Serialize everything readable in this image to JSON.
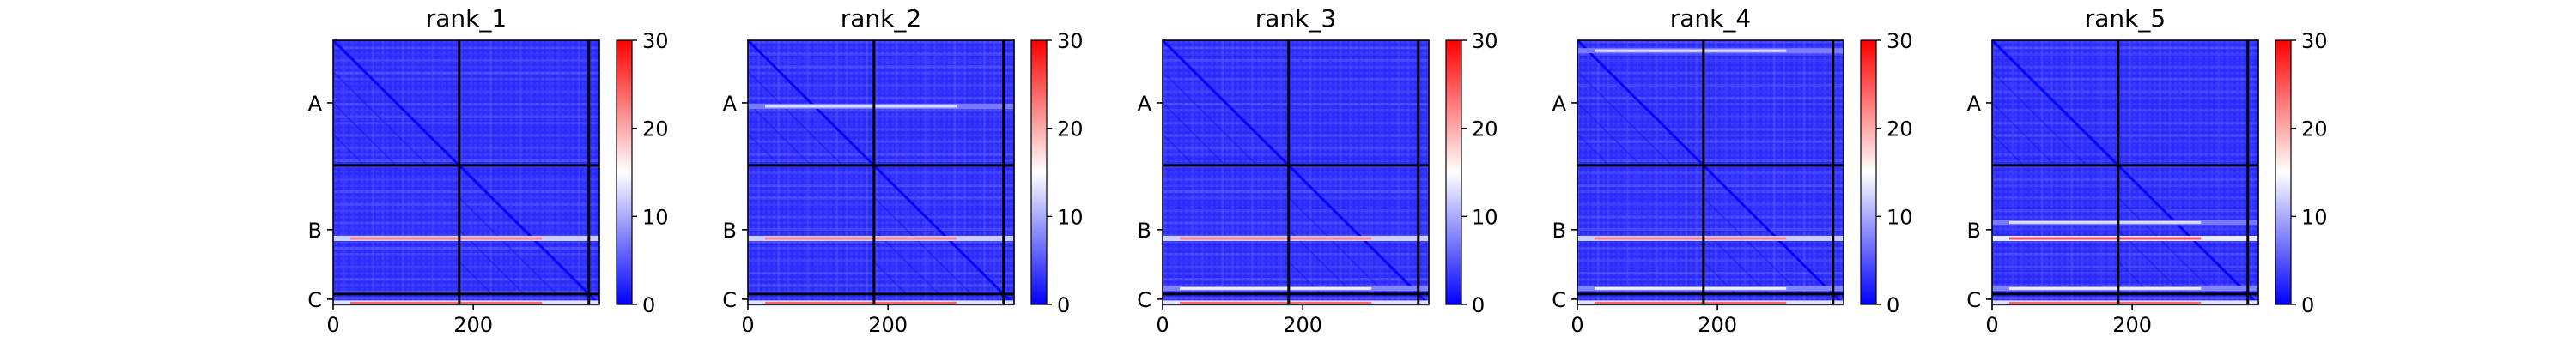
{
  "chart_data": [
    {
      "type": "heatmap",
      "title": "rank_1",
      "ylabels": [
        "A",
        "B",
        "C"
      ],
      "xticks": [
        0,
        200
      ],
      "colorbar": {
        "ticks": [
          0,
          10,
          20,
          30
        ],
        "range": [
          0,
          30
        ],
        "colors": [
          "#0000ff",
          "#ffffff",
          "#ff0000"
        ]
      },
      "matrix_size": 380,
      "chain_breaks": [
        180,
        365
      ],
      "bright_rows": [
        {
          "pos": 285,
          "value": 22
        },
        {
          "pos": 378,
          "value": 24
        }
      ]
    },
    {
      "type": "heatmap",
      "title": "rank_2",
      "ylabels": [
        "A",
        "B",
        "C"
      ],
      "xticks": [
        0,
        200
      ],
      "colorbar": {
        "ticks": [
          0,
          10,
          20,
          30
        ],
        "range": [
          0,
          30
        ],
        "colors": [
          "#0000ff",
          "#ffffff",
          "#ff0000"
        ]
      },
      "matrix_size": 380,
      "chain_breaks": [
        180,
        365
      ],
      "bright_rows": [
        {
          "pos": 95,
          "value": 13
        },
        {
          "pos": 285,
          "value": 22
        },
        {
          "pos": 378,
          "value": 24
        }
      ]
    },
    {
      "type": "heatmap",
      "title": "rank_3",
      "ylabels": [
        "A",
        "B",
        "C"
      ],
      "xticks": [
        0,
        200
      ],
      "colorbar": {
        "ticks": [
          0,
          10,
          20,
          30
        ],
        "range": [
          0,
          30
        ],
        "colors": [
          "#0000ff",
          "#ffffff",
          "#ff0000"
        ]
      },
      "matrix_size": 380,
      "chain_breaks": [
        180,
        365
      ],
      "bright_rows": [
        {
          "pos": 285,
          "value": 22
        },
        {
          "pos": 357,
          "value": 14
        },
        {
          "pos": 378,
          "value": 24
        }
      ]
    },
    {
      "type": "heatmap",
      "title": "rank_4",
      "ylabels": [
        "A",
        "B",
        "C"
      ],
      "xticks": [
        0,
        200
      ],
      "colorbar": {
        "ticks": [
          0,
          10,
          20,
          30
        ],
        "range": [
          0,
          30
        ],
        "colors": [
          "#0000ff",
          "#ffffff",
          "#ff0000"
        ]
      },
      "matrix_size": 380,
      "chain_breaks": [
        180,
        365
      ],
      "bright_rows": [
        {
          "pos": 15,
          "value": 13
        },
        {
          "pos": 285,
          "value": 22
        },
        {
          "pos": 357,
          "value": 14
        },
        {
          "pos": 378,
          "value": 24
        }
      ]
    },
    {
      "type": "heatmap",
      "title": "rank_5",
      "ylabels": [
        "A",
        "B",
        "C"
      ],
      "xticks": [
        0,
        200
      ],
      "colorbar": {
        "ticks": [
          0,
          10,
          20,
          30
        ],
        "range": [
          0,
          30
        ],
        "colors": [
          "#0000ff",
          "#ffffff",
          "#ff0000"
        ]
      },
      "matrix_size": 380,
      "chain_breaks": [
        180,
        365
      ],
      "bright_rows": [
        {
          "pos": 262,
          "value": 13
        },
        {
          "pos": 285,
          "value": 25
        },
        {
          "pos": 357,
          "value": 14
        },
        {
          "pos": 378,
          "value": 24
        }
      ]
    }
  ]
}
